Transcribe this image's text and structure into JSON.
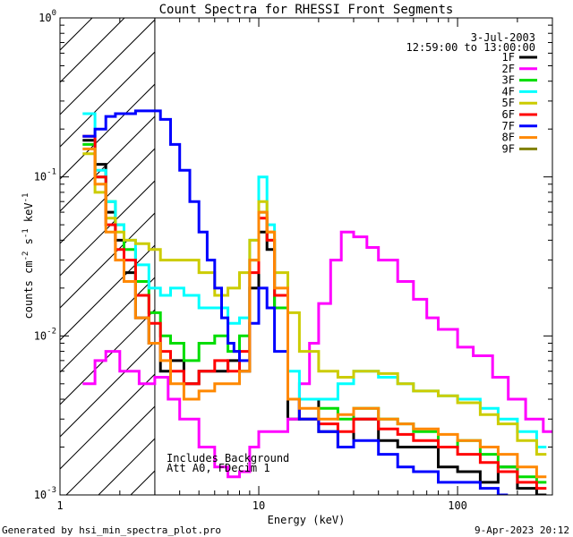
{
  "chart_data": {
    "type": "line",
    "title": "Count Spectra for RHESSI Front Segments",
    "xlabel": "Energy (keV)",
    "ylabel_parts": [
      "counts cm",
      "-2",
      " s",
      "-1",
      " keV",
      "-1"
    ],
    "xscale": "log",
    "yscale": "log",
    "xlim": [
      1,
      300
    ],
    "ylim": [
      0.001,
      1
    ],
    "x_ticks": [
      {
        "value": 1,
        "label": "1"
      },
      {
        "value": 10,
        "label": "10"
      },
      {
        "value": 100,
        "label": "100"
      }
    ],
    "y_ticks": [
      {
        "value": 0.001,
        "base": "10",
        "exp": "-3"
      },
      {
        "value": 0.01,
        "base": "10",
        "exp": "-2"
      },
      {
        "value": 0.1,
        "base": "10",
        "exp": "-1"
      },
      {
        "value": 1,
        "base": "10",
        "exp": "0"
      }
    ],
    "attenuator_region_max_kev": 3,
    "date": "3-Jul-2003",
    "time_range": "12:59:00 to 13:00:00",
    "annotations": [
      "Includes Background",
      "Att A0, FDecim 1"
    ],
    "footer_left": "Generated by hsi_min_spectra_plot.pro",
    "footer_right": "9-Apr-2023 20:12",
    "series": [
      {
        "name": "1F",
        "color": "#000000",
        "visible": true,
        "points": [
          [
            1.3,
            0.17
          ],
          [
            1.5,
            0.12
          ],
          [
            1.7,
            0.06
          ],
          [
            1.9,
            0.04
          ],
          [
            2.1,
            0.025
          ],
          [
            2.4,
            0.013
          ],
          [
            2.8,
            0.009
          ],
          [
            3.2,
            0.006
          ],
          [
            3.6,
            0.007
          ],
          [
            4.2,
            0.005
          ],
          [
            5,
            0.006
          ],
          [
            6,
            0.006
          ],
          [
            7,
            0.007
          ],
          [
            8,
            0.006
          ],
          [
            9,
            0.02
          ],
          [
            10,
            0.045
          ],
          [
            11,
            0.035
          ],
          [
            12,
            0.015
          ],
          [
            14,
            0.003
          ],
          [
            16,
            0.004
          ],
          [
            20,
            0.0025
          ],
          [
            25,
            0.002
          ],
          [
            30,
            0.003
          ],
          [
            40,
            0.0022
          ],
          [
            50,
            0.002
          ],
          [
            60,
            0.002
          ],
          [
            80,
            0.0015
          ],
          [
            100,
            0.0014
          ],
          [
            130,
            0.0012
          ],
          [
            160,
            0.0015
          ],
          [
            200,
            0.0011
          ],
          [
            250,
            0.001
          ]
        ]
      },
      {
        "name": "2F",
        "color": "#ff00ff",
        "visible": true,
        "points": [
          [
            1.3,
            0.005
          ],
          [
            1.5,
            0.007
          ],
          [
            1.7,
            0.008
          ],
          [
            2,
            0.006
          ],
          [
            2.5,
            0.005
          ],
          [
            3,
            0.0055
          ],
          [
            3.5,
            0.004
          ],
          [
            4,
            0.003
          ],
          [
            5,
            0.002
          ],
          [
            6,
            0.0015
          ],
          [
            7,
            0.0013
          ],
          [
            8,
            0.0014
          ],
          [
            9,
            0.002
          ],
          [
            10,
            0.0025
          ],
          [
            12,
            0.0025
          ],
          [
            14,
            0.003
          ],
          [
            16,
            0.005
          ],
          [
            18,
            0.009
          ],
          [
            20,
            0.016
          ],
          [
            23,
            0.03
          ],
          [
            26,
            0.045
          ],
          [
            30,
            0.042
          ],
          [
            35,
            0.036
          ],
          [
            40,
            0.03
          ],
          [
            50,
            0.022
          ],
          [
            60,
            0.017
          ],
          [
            70,
            0.013
          ],
          [
            80,
            0.011
          ],
          [
            100,
            0.0085
          ],
          [
            120,
            0.0075
          ],
          [
            150,
            0.0055
          ],
          [
            180,
            0.004
          ],
          [
            220,
            0.003
          ],
          [
            270,
            0.0025
          ]
        ]
      },
      {
        "name": "3F",
        "color": "#00dd00",
        "visible": true,
        "points": [
          [
            1.3,
            0.16
          ],
          [
            1.5,
            0.1
          ],
          [
            1.7,
            0.07
          ],
          [
            1.9,
            0.05
          ],
          [
            2.1,
            0.035
          ],
          [
            2.4,
            0.022
          ],
          [
            2.8,
            0.014
          ],
          [
            3.2,
            0.01
          ],
          [
            3.6,
            0.009
          ],
          [
            4.2,
            0.007
          ],
          [
            5,
            0.009
          ],
          [
            6,
            0.01
          ],
          [
            7,
            0.008
          ],
          [
            8,
            0.01
          ],
          [
            9,
            0.03
          ],
          [
            10,
            0.06
          ],
          [
            11,
            0.04
          ],
          [
            12,
            0.015
          ],
          [
            14,
            0.004
          ],
          [
            16,
            0.003
          ],
          [
            20,
            0.0035
          ],
          [
            25,
            0.003
          ],
          [
            30,
            0.0035
          ],
          [
            40,
            0.003
          ],
          [
            50,
            0.0028
          ],
          [
            60,
            0.0025
          ],
          [
            80,
            0.002
          ],
          [
            100,
            0.0022
          ],
          [
            130,
            0.0018
          ],
          [
            160,
            0.0015
          ],
          [
            200,
            0.0013
          ],
          [
            250,
            0.0012
          ]
        ]
      },
      {
        "name": "4F",
        "color": "#00ffff",
        "visible": true,
        "points": [
          [
            1.3,
            0.25
          ],
          [
            1.5,
            0.11
          ],
          [
            1.7,
            0.07
          ],
          [
            1.9,
            0.05
          ],
          [
            2.1,
            0.04
          ],
          [
            2.4,
            0.028
          ],
          [
            2.8,
            0.02
          ],
          [
            3.2,
            0.018
          ],
          [
            3.6,
            0.02
          ],
          [
            4.2,
            0.018
          ],
          [
            5,
            0.015
          ],
          [
            6,
            0.015
          ],
          [
            7,
            0.012
          ],
          [
            8,
            0.013
          ],
          [
            9,
            0.04
          ],
          [
            10,
            0.1
          ],
          [
            11,
            0.05
          ],
          [
            12,
            0.018
          ],
          [
            14,
            0.006
          ],
          [
            16,
            0.004
          ],
          [
            20,
            0.004
          ],
          [
            25,
            0.005
          ],
          [
            30,
            0.006
          ],
          [
            40,
            0.0055
          ],
          [
            50,
            0.005
          ],
          [
            60,
            0.0045
          ],
          [
            80,
            0.0042
          ],
          [
            100,
            0.004
          ],
          [
            130,
            0.0035
          ],
          [
            160,
            0.003
          ],
          [
            200,
            0.0025
          ],
          [
            250,
            0.002
          ]
        ]
      },
      {
        "name": "5F",
        "color": "#cccc00",
        "visible": true,
        "points": [
          [
            1.3,
            0.14
          ],
          [
            1.5,
            0.08
          ],
          [
            1.7,
            0.055
          ],
          [
            1.9,
            0.045
          ],
          [
            2.1,
            0.04
          ],
          [
            2.4,
            0.038
          ],
          [
            2.8,
            0.035
          ],
          [
            3.2,
            0.03
          ],
          [
            3.6,
            0.03
          ],
          [
            4.2,
            0.03
          ],
          [
            5,
            0.025
          ],
          [
            6,
            0.018
          ],
          [
            7,
            0.02
          ],
          [
            8,
            0.025
          ],
          [
            9,
            0.04
          ],
          [
            10,
            0.07
          ],
          [
            11,
            0.045
          ],
          [
            12,
            0.025
          ],
          [
            14,
            0.014
          ],
          [
            16,
            0.008
          ],
          [
            20,
            0.006
          ],
          [
            25,
            0.0055
          ],
          [
            30,
            0.006
          ],
          [
            40,
            0.0058
          ],
          [
            50,
            0.005
          ],
          [
            60,
            0.0045
          ],
          [
            80,
            0.0042
          ],
          [
            100,
            0.0038
          ],
          [
            130,
            0.0032
          ],
          [
            160,
            0.0028
          ],
          [
            200,
            0.0022
          ],
          [
            250,
            0.0018
          ]
        ]
      },
      {
        "name": "6F",
        "color": "#ff0000",
        "visible": true,
        "points": [
          [
            1.3,
            0.18
          ],
          [
            1.5,
            0.1
          ],
          [
            1.7,
            0.05
          ],
          [
            1.9,
            0.035
          ],
          [
            2.1,
            0.03
          ],
          [
            2.4,
            0.018
          ],
          [
            2.8,
            0.012
          ],
          [
            3.2,
            0.008
          ],
          [
            3.6,
            0.006
          ],
          [
            4.2,
            0.005
          ],
          [
            5,
            0.006
          ],
          [
            6,
            0.007
          ],
          [
            7,
            0.006
          ],
          [
            8,
            0.008
          ],
          [
            9,
            0.025
          ],
          [
            10,
            0.055
          ],
          [
            11,
            0.04
          ],
          [
            12,
            0.018
          ],
          [
            14,
            0.004
          ],
          [
            16,
            0.003
          ],
          [
            20,
            0.0028
          ],
          [
            25,
            0.0025
          ],
          [
            30,
            0.003
          ],
          [
            40,
            0.0026
          ],
          [
            50,
            0.0024
          ],
          [
            60,
            0.0022
          ],
          [
            80,
            0.002
          ],
          [
            100,
            0.0018
          ],
          [
            130,
            0.0016
          ],
          [
            160,
            0.0014
          ],
          [
            200,
            0.0012
          ],
          [
            250,
            0.0011
          ]
        ]
      },
      {
        "name": "7F",
        "color": "#0000ff",
        "visible": true,
        "points": [
          [
            1.3,
            0.18
          ],
          [
            1.5,
            0.2
          ],
          [
            1.7,
            0.24
          ],
          [
            1.9,
            0.25
          ],
          [
            2.1,
            0.25
          ],
          [
            2.4,
            0.26
          ],
          [
            2.8,
            0.26
          ],
          [
            3.2,
            0.23
          ],
          [
            3.6,
            0.16
          ],
          [
            4,
            0.11
          ],
          [
            4.5,
            0.07
          ],
          [
            5,
            0.045
          ],
          [
            5.5,
            0.03
          ],
          [
            6,
            0.02
          ],
          [
            6.5,
            0.013
          ],
          [
            7,
            0.009
          ],
          [
            7.5,
            0.008
          ],
          [
            8,
            0.007
          ],
          [
            9,
            0.012
          ],
          [
            10,
            0.02
          ],
          [
            11,
            0.015
          ],
          [
            12,
            0.008
          ],
          [
            14,
            0.004
          ],
          [
            16,
            0.003
          ],
          [
            20,
            0.0025
          ],
          [
            25,
            0.002
          ],
          [
            30,
            0.0022
          ],
          [
            40,
            0.0018
          ],
          [
            50,
            0.0015
          ],
          [
            60,
            0.0014
          ],
          [
            80,
            0.0012
          ],
          [
            100,
            0.0012
          ],
          [
            130,
            0.0011
          ],
          [
            160,
            0.001
          ]
        ]
      },
      {
        "name": "8F",
        "color": "#ff8800",
        "visible": true,
        "points": [
          [
            1.3,
            0.15
          ],
          [
            1.5,
            0.09
          ],
          [
            1.7,
            0.045
          ],
          [
            1.9,
            0.03
          ],
          [
            2.1,
            0.022
          ],
          [
            2.4,
            0.013
          ],
          [
            2.8,
            0.009
          ],
          [
            3.2,
            0.007
          ],
          [
            3.6,
            0.005
          ],
          [
            4.2,
            0.004
          ],
          [
            5,
            0.0045
          ],
          [
            6,
            0.005
          ],
          [
            7,
            0.005
          ],
          [
            8,
            0.006
          ],
          [
            9,
            0.03
          ],
          [
            10,
            0.06
          ],
          [
            11,
            0.045
          ],
          [
            12,
            0.02
          ],
          [
            14,
            0.004
          ],
          [
            16,
            0.0035
          ],
          [
            20,
            0.003
          ],
          [
            25,
            0.0032
          ],
          [
            30,
            0.0035
          ],
          [
            40,
            0.003
          ],
          [
            50,
            0.0028
          ],
          [
            60,
            0.0026
          ],
          [
            80,
            0.0024
          ],
          [
            100,
            0.0022
          ],
          [
            130,
            0.002
          ],
          [
            160,
            0.0018
          ],
          [
            200,
            0.0015
          ],
          [
            250,
            0.0013
          ]
        ]
      },
      {
        "name": "9F",
        "color": "#808000",
        "visible": false,
        "points": []
      }
    ]
  }
}
